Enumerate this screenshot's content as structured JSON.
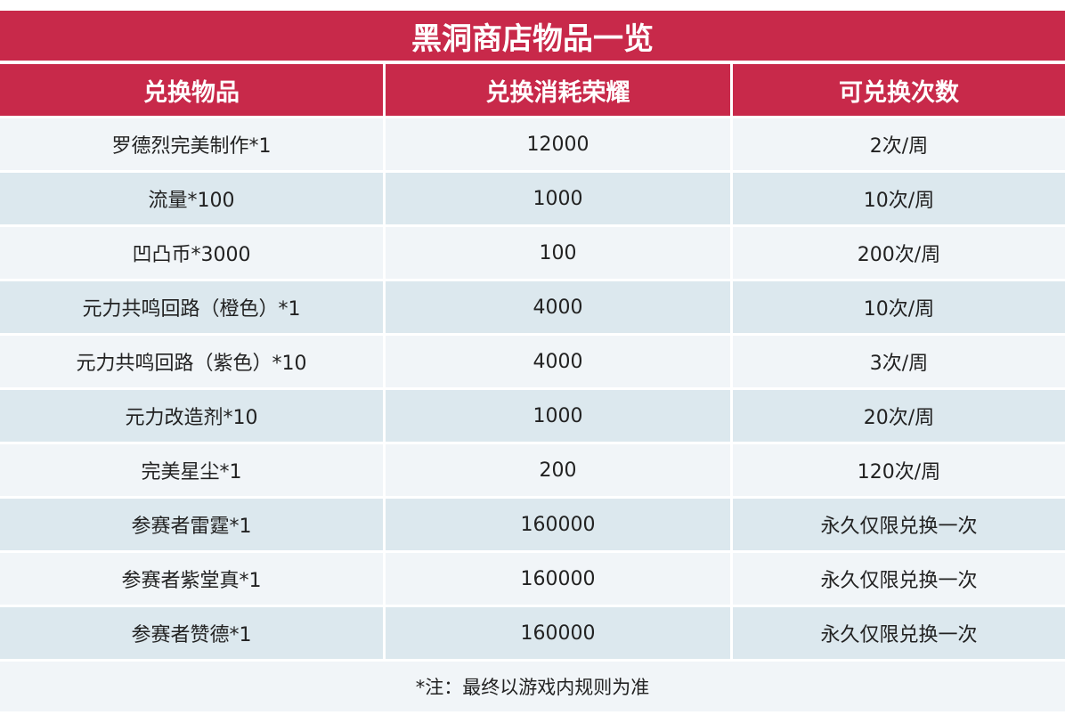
{
  "title": "黑洞商店物品一览",
  "table": {
    "header": [
      "兑换物品",
      "兑换消耗荣耀",
      "可兑换次数"
    ],
    "rows": [
      [
        "罗德烈完美制作*1",
        "12000",
        "2次/周"
      ],
      [
        "流量*100",
        "1000",
        "10次/周"
      ],
      [
        "凹凸币*3000",
        "100",
        "200次/周"
      ],
      [
        "元力共鸣回路（橙色）*1",
        "4000",
        "10次/周"
      ],
      [
        "元力共鸣回路（紫色）*10",
        "4000",
        "3次/周"
      ],
      [
        "元力改造剂*10",
        "1000",
        "20次/周"
      ],
      [
        "完美星尘*1",
        "200",
        "120次/周"
      ],
      [
        "参赛者雷霆*1",
        "160000",
        "永久仅限兑换一次"
      ],
      [
        "参赛者紫堂真*1",
        "160000",
        "永久仅限兑换一次"
      ],
      [
        "参赛者赞德*1",
        "160000",
        "永久仅限兑换一次"
      ]
    ]
  },
  "note": "*注：最终以游戏内规则为准"
}
